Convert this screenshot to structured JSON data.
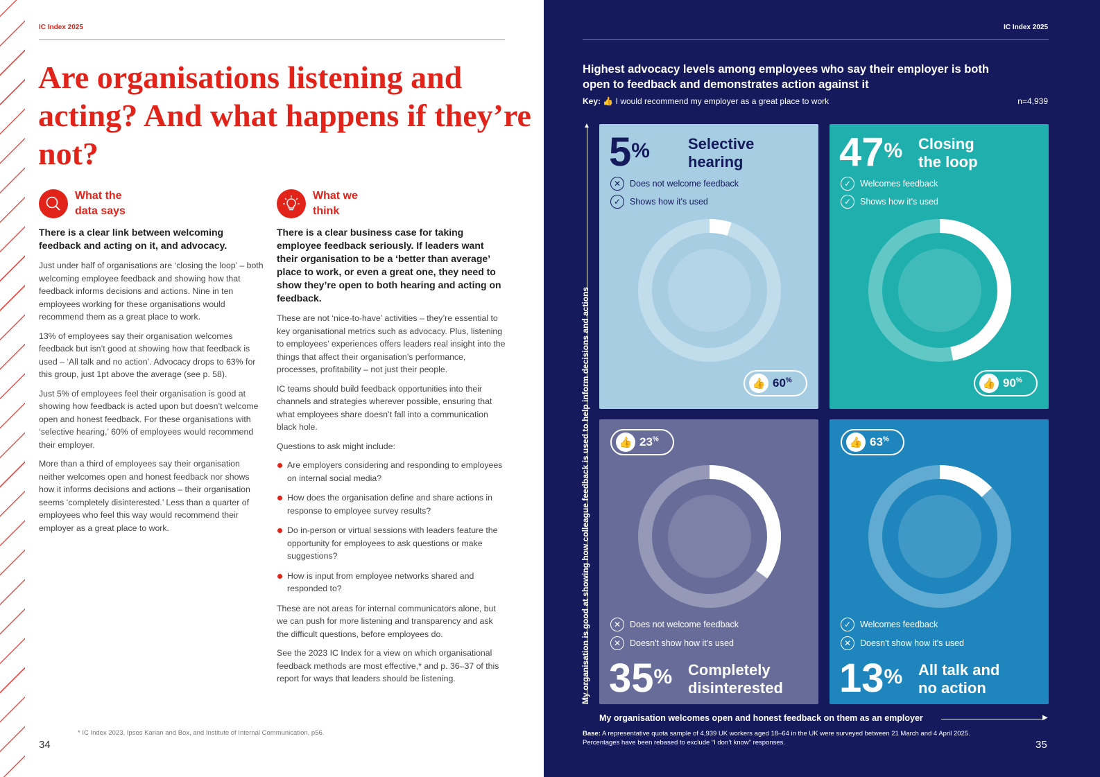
{
  "left_page": {
    "header": "IC Index 2025",
    "title": "Are organisations listening and acting? And what happens if they’re not?",
    "data_says": {
      "heading": "What the data says",
      "lead": "There is a clear link between welcoming feedback and acting on it, and advocacy.",
      "paragraphs": [
        "Just under half of organisations are ‘closing the loop’ – both welcoming employee feedback and showing how that feedback informs decisions and actions. Nine in ten employees working for these organisations would recommend them as a great place to work.",
        "13% of employees say their organisation welcomes feedback but isn’t good at showing how that feedback is used – ‘All talk and no action’. Advocacy drops to 63% for this group, just 1pt above the average (see p. 58).",
        "Just 5% of employees feel their organisation is good at showing how feedback is acted upon but doesn’t welcome open and honest feedback. For these organisations with ‘selective hearing,’ 60% of employees would recommend their employer.",
        "More than a third of employees say their organisation neither welcomes open and honest feedback nor shows how it informs decisions and actions – their organisation seems ‘completely disinterested.’ Less than a quarter of employees who feel this way would recommend their employer as a great place to work."
      ]
    },
    "we_think": {
      "heading": "What we think",
      "lead": "There is a clear business case for taking employee feedback seriously. If leaders want their organisation to be a ‘better than average’ place to work, or even a great one, they need to show they’re open to both hearing and acting on feedback.",
      "p1": "These are not ‘nice-to-have’ activities – they’re essential to key organisational metrics such as advocacy. Plus, listening to employees’ experiences offers leaders real insight into the things that affect their organisation’s performance, processes, profitability – not just their people.",
      "p2": "IC teams should build feedback opportunities into their channels and strategies wherever possible, ensuring that what employees share doesn’t fall into a communication black hole.",
      "p3": "Questions to ask might include:",
      "bullets": [
        "Are employers considering and responding to employees on internal social media?",
        "How does the organisation define and share actions in response to employee survey results?",
        "Do in-person or virtual sessions with leaders feature the opportunity for employees to ask questions or make suggestions?",
        "How is input from employee networks shared and responded to?"
      ],
      "p4": "These are not areas for internal communicators alone, but we can push for more listening and transparency and ask the difficult questions, before employees do.",
      "p5": "See the 2023 IC Index for a view on which organisational feedback methods are most effective,* and p. 36–37 of this report for ways that leaders should be listening."
    },
    "footnote": "* IC Index 2023, Ipsos Karian and Box, and Institute of Internal Communication, p56.",
    "page_number": "34"
  },
  "right_page": {
    "header": "IC Index 2025",
    "title": "Highest advocacy levels among employees who say their employer is both open to feedback and demonstrates action against it",
    "key_label": "Key:",
    "key_text": "I would recommend my employer as a great place to work",
    "n": "n=4,939",
    "y_axis": "My organisation is good at showing how colleague feedback is used to help inform decisions and actions",
    "x_axis": "My organisation welcomes open and honest feedback on them as an employer",
    "quadrants": [
      {
        "pct": "5",
        "share": 5,
        "name1": "Selective",
        "name2": "hearing",
        "c1": "Does not welcome feedback",
        "c1_icon": "x",
        "c2": "Shows how it's used",
        "c2_icon": "check",
        "advocacy": "60",
        "color": "#a7cde3"
      },
      {
        "pct": "47",
        "share": 47,
        "name1": "Closing",
        "name2": "the loop",
        "c1": "Welcomes feedback",
        "c1_icon": "check",
        "c2": "Shows how it's used",
        "c2_icon": "check",
        "advocacy": "90",
        "color": "#1fb0ae"
      },
      {
        "pct": "35",
        "share": 35,
        "name1": "Completely",
        "name2": "disinterested",
        "c1": "Does not welcome feedback",
        "c1_icon": "x",
        "c2": "Doesn't show how it's used",
        "c2_icon": "x",
        "advocacy": "23",
        "color": "#676c99"
      },
      {
        "pct": "13",
        "share": 13,
        "name1": "All talk and",
        "name2": "no action",
        "c1": "Welcomes feedback",
        "c1_icon": "check",
        "c2": "Doesn't show how it's used",
        "c2_icon": "x",
        "advocacy": "63",
        "color": "#1e86bd"
      }
    ],
    "pct_sign": "%",
    "base_label": "Base:",
    "base_text": "A representative quota sample of 4,939 UK workers aged 18–64 in the UK were surveyed between 21 March and 4 April 2025.",
    "base_text2": "Percentages have been rebased to exclude “I don’t know” responses.",
    "page_number": "35"
  }
}
